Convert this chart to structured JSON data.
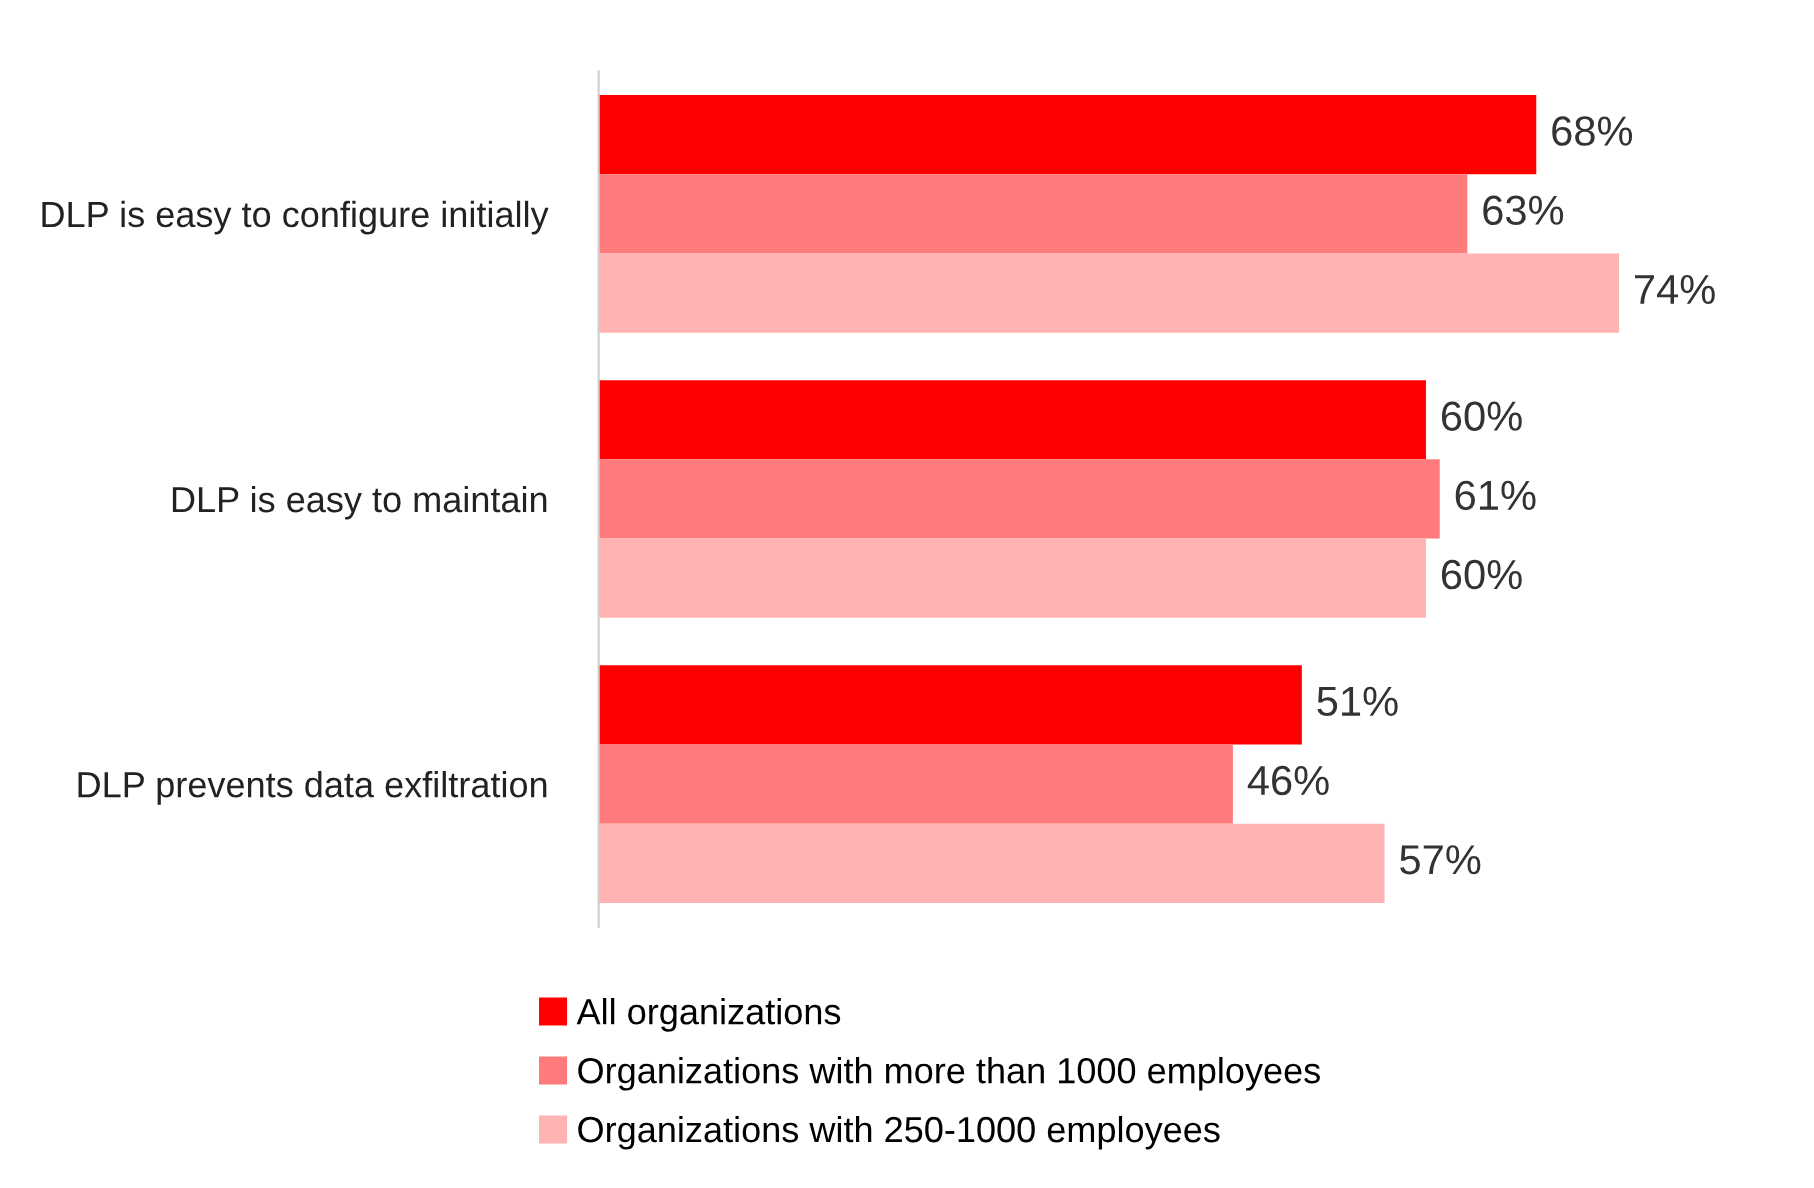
{
  "chart_data": {
    "type": "bar",
    "orientation": "horizontal",
    "legend": "bottom",
    "grid": false,
    "categories": [
      "DLP is easy to configure initially",
      "DLP is easy to maintain",
      "DLP prevents data exfiltration"
    ],
    "series": [
      {
        "name": "All organizations",
        "color": "#ff0000",
        "values": [
          68,
          60,
          51
        ],
        "value_labels": [
          "68%",
          "60%",
          "51%"
        ]
      },
      {
        "name": "Organizations with more than 1000 employees",
        "color": "#ff7b7b",
        "values": [
          63,
          61,
          46
        ],
        "value_labels": [
          "63%",
          "61%",
          "46%"
        ]
      },
      {
        "name": "Organizations with 250-1000 employees",
        "color": "#ffb3b3",
        "values": [
          74,
          60,
          57
        ],
        "value_labels": [
          "74%",
          "60%",
          "57%"
        ]
      }
    ]
  }
}
